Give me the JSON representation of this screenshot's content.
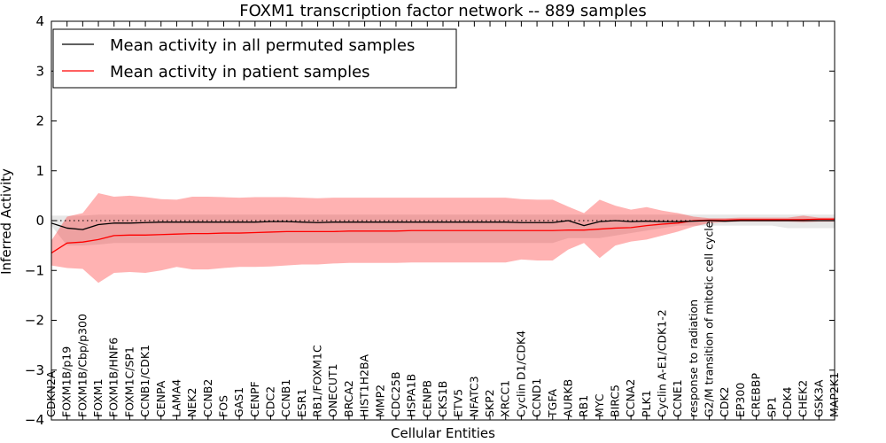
{
  "chart_data": {
    "type": "line",
    "title": "FOXM1 transcription factor network -- 889 samples",
    "xlabel": "Cellular Entities",
    "ylabel": "Inferred Activity",
    "ylim": [
      -4,
      4
    ],
    "yticks": [
      -4,
      -3,
      -2,
      -1,
      0,
      1,
      2,
      3,
      4
    ],
    "ytick_labels": [
      "−4",
      "−3",
      "−2",
      "−1",
      "0",
      "1",
      "2",
      "3",
      "4"
    ],
    "legend": {
      "placement": "top-left",
      "entries": [
        {
          "label": "Mean activity in all permuted samples",
          "color": "#000000"
        },
        {
          "label": "Mean activity in patient samples",
          "color": "#ff0000"
        }
      ]
    },
    "categories": [
      "CDKN2A",
      "FOXM1B/p19",
      "FOXM1B/Cbp/p300",
      "FOXM1",
      "FOXM1B/HNF6",
      "FOXM1C/SP1",
      "CCNB1/CDK1",
      "CENPA",
      "LAMA4",
      "NEK2",
      "CCNB2",
      "FOS",
      "GAS1",
      "CENPF",
      "CDC2",
      "CCNB1",
      "ESR1",
      "RB1/FOXM1C",
      "ONECUT1",
      "BRCA2",
      "HIST1H2BA",
      "MMP2",
      "CDC25B",
      "HSPA1B",
      "CENPB",
      "CKS1B",
      "ETV5",
      "NFATC3",
      "SKP2",
      "XRCC1",
      "Cyclin D1/CDK4",
      "CCND1",
      "TGFA",
      "AURKB",
      "RB1",
      "MYC",
      "BIRC5",
      "CCNA2",
      "PLK1",
      "Cyclin A-E1/CDK1-2",
      "CCNE1",
      "response to radiation",
      "G2/M transition of mitotic cell cycle",
      "CDK2",
      "EP300",
      "CREBBP",
      "SP1",
      "CDK4",
      "CHEK2",
      "GSK3A",
      "MAP2K1"
    ],
    "series": [
      {
        "name": "Mean activity in all permuted samples",
        "color": "#000000",
        "values": [
          -0.05,
          -0.15,
          -0.18,
          -0.08,
          -0.05,
          -0.05,
          -0.04,
          -0.03,
          -0.03,
          -0.03,
          -0.03,
          -0.03,
          -0.03,
          -0.03,
          -0.02,
          -0.02,
          -0.03,
          -0.04,
          -0.03,
          -0.03,
          -0.03,
          -0.03,
          -0.03,
          -0.03,
          -0.03,
          -0.03,
          -0.03,
          -0.03,
          -0.03,
          -0.03,
          -0.04,
          -0.04,
          -0.04,
          0.0,
          -0.1,
          -0.02,
          0.0,
          -0.02,
          -0.01,
          -0.02,
          -0.02,
          -0.01,
          0.0,
          -0.01,
          0.0,
          0.0,
          0.0,
          0.0,
          0.0,
          0.0,
          0.0
        ],
        "lower": [
          -0.1,
          -0.5,
          -0.5,
          -0.48,
          -0.45,
          -0.45,
          -0.45,
          -0.45,
          -0.45,
          -0.45,
          -0.45,
          -0.45,
          -0.45,
          -0.45,
          -0.45,
          -0.45,
          -0.45,
          -0.45,
          -0.45,
          -0.45,
          -0.45,
          -0.45,
          -0.45,
          -0.45,
          -0.45,
          -0.45,
          -0.45,
          -0.45,
          -0.45,
          -0.45,
          -0.45,
          -0.45,
          -0.45,
          -0.35,
          -0.35,
          -0.35,
          -0.3,
          -0.25,
          -0.2,
          -0.15,
          -0.1,
          -0.1,
          -0.1,
          -0.1,
          -0.1,
          -0.1,
          -0.1,
          -0.15,
          -0.15,
          -0.15,
          -0.15
        ],
        "upper": [
          0.1,
          0.1,
          0.1,
          0.12,
          0.12,
          0.12,
          0.12,
          0.12,
          0.12,
          0.12,
          0.12,
          0.12,
          0.12,
          0.12,
          0.12,
          0.12,
          0.12,
          0.12,
          0.12,
          0.12,
          0.12,
          0.12,
          0.12,
          0.12,
          0.12,
          0.12,
          0.12,
          0.12,
          0.12,
          0.12,
          0.12,
          0.12,
          0.12,
          0.12,
          0.12,
          0.12,
          0.12,
          0.12,
          0.12,
          0.12,
          0.12,
          0.12,
          0.12,
          0.12,
          0.12,
          0.12,
          0.12,
          0.12,
          0.12,
          0.12,
          0.12
        ]
      },
      {
        "name": "Mean activity in patient samples",
        "color": "#ff0000",
        "values": [
          -0.65,
          -0.45,
          -0.43,
          -0.38,
          -0.3,
          -0.29,
          -0.29,
          -0.28,
          -0.27,
          -0.26,
          -0.26,
          -0.25,
          -0.25,
          -0.24,
          -0.23,
          -0.22,
          -0.22,
          -0.22,
          -0.22,
          -0.21,
          -0.21,
          -0.21,
          -0.21,
          -0.2,
          -0.2,
          -0.2,
          -0.2,
          -0.2,
          -0.2,
          -0.2,
          -0.2,
          -0.2,
          -0.2,
          -0.19,
          -0.19,
          -0.17,
          -0.15,
          -0.14,
          -0.1,
          -0.07,
          -0.05,
          0.0,
          0.01,
          0.01,
          0.02,
          0.02,
          0.02,
          0.02,
          0.02,
          0.03,
          0.03
        ],
        "lower": [
          -0.9,
          -0.95,
          -0.97,
          -1.25,
          -1.05,
          -1.03,
          -1.05,
          -1.0,
          -0.93,
          -0.98,
          -0.98,
          -0.95,
          -0.93,
          -0.93,
          -0.92,
          -0.9,
          -0.88,
          -0.88,
          -0.86,
          -0.85,
          -0.85,
          -0.85,
          -0.85,
          -0.84,
          -0.84,
          -0.84,
          -0.84,
          -0.84,
          -0.84,
          -0.84,
          -0.78,
          -0.8,
          -0.8,
          -0.58,
          -0.45,
          -0.75,
          -0.5,
          -0.42,
          -0.38,
          -0.3,
          -0.22,
          -0.12,
          -0.05,
          -0.03,
          -0.02,
          -0.02,
          -0.02,
          -0.02,
          -0.03,
          -0.02,
          -0.02
        ],
        "upper": [
          -0.4,
          0.08,
          0.15,
          0.55,
          0.48,
          0.5,
          0.47,
          0.43,
          0.42,
          0.48,
          0.48,
          0.47,
          0.46,
          0.47,
          0.47,
          0.47,
          0.46,
          0.45,
          0.46,
          0.46,
          0.46,
          0.46,
          0.46,
          0.46,
          0.46,
          0.46,
          0.46,
          0.46,
          0.46,
          0.46,
          0.43,
          0.42,
          0.42,
          0.28,
          0.15,
          0.42,
          0.3,
          0.22,
          0.27,
          0.2,
          0.15,
          0.08,
          0.05,
          0.05,
          0.06,
          0.06,
          0.06,
          0.06,
          0.1,
          0.06,
          0.06
        ]
      }
    ]
  }
}
